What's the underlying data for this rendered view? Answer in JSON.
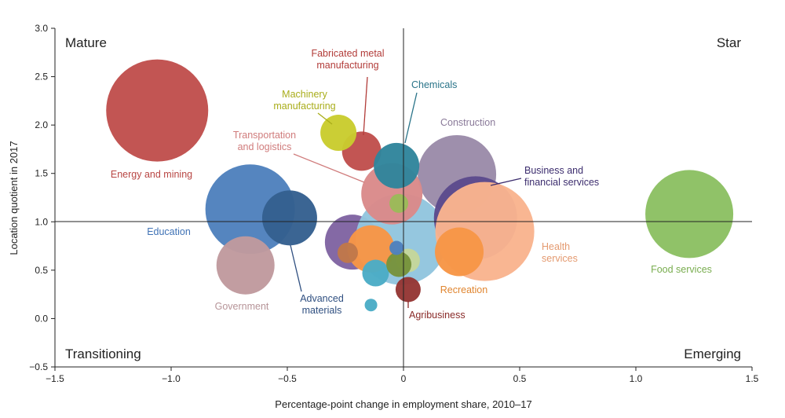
{
  "chart_data": {
    "type": "scatter",
    "subtype": "bubble",
    "xlabel": "Percentage-point change in employment share, 2010–17",
    "ylabel": "Location quotient in 2017",
    "xlim": [
      -1.5,
      1.5
    ],
    "ylim": [
      -0.5,
      3.0
    ],
    "x_ticks": [
      -1.5,
      -1.0,
      -0.5,
      0,
      0.5,
      1.0,
      1.5
    ],
    "x_tick_labels": [
      "−1.5",
      "−1.0",
      "−0.5",
      "0",
      "0.5",
      "1.0",
      "1.5"
    ],
    "y_ticks": [
      -0.5,
      0.0,
      0.5,
      1.0,
      1.5,
      2.0,
      2.5,
      3.0
    ],
    "y_tick_labels": [
      "−0.5",
      "0.0",
      "0.5",
      "1.0",
      "1.5",
      "2.0",
      "2.5",
      "3.0"
    ],
    "reference_lines": {
      "x": 0,
      "y": 1.0
    },
    "quadrants": {
      "top_left": "Mature",
      "top_right": "Star",
      "bottom_left": "Transitioning",
      "bottom_right": "Emerging"
    },
    "bubbles": [
      {
        "id": "energy-and-mining",
        "label": "Energy and mining",
        "x": -1.06,
        "y": 2.15,
        "size": 65,
        "color": "#c0504d"
      },
      {
        "id": "education",
        "label": "Education",
        "x": -0.66,
        "y": 1.13,
        "size": 57,
        "color": "#4f81bd"
      },
      {
        "id": "government",
        "label": "Government",
        "x": -0.68,
        "y": 0.55,
        "size": 37,
        "color": "#c09a9e"
      },
      {
        "id": "advanced-materials",
        "label": "Advanced materials",
        "x": -0.49,
        "y": 1.04,
        "size": 35,
        "color": "#35608f"
      },
      {
        "id": "unlabeled-purple",
        "label": "",
        "x": -0.22,
        "y": 0.79,
        "size": 35,
        "color": "#8064a2"
      },
      {
        "id": "unlabeled-light-blue",
        "label": "",
        "x": -0.01,
        "y": 0.82,
        "size": 58,
        "color": "#92c5de"
      },
      {
        "id": "construction",
        "label": "Construction",
        "x": 0.23,
        "y": 1.49,
        "size": 50,
        "color": "#9b8ba9"
      },
      {
        "id": "business-and-financial-services",
        "label": "Business and financial services",
        "x": 0.31,
        "y": 1.04,
        "size": 53,
        "color": "#5c4a8c"
      },
      {
        "id": "health-services",
        "label": "Health services",
        "x": 0.35,
        "y": 0.9,
        "size": 63,
        "color": "#f9b48e"
      },
      {
        "id": "recreation",
        "label": "Recreation",
        "x": 0.24,
        "y": 0.69,
        "size": 31,
        "color": "#f79646"
      },
      {
        "id": "food-services",
        "label": "Food services",
        "x": 1.23,
        "y": 1.08,
        "size": 56,
        "color": "#8cc063"
      },
      {
        "id": "transportation-and-logistics",
        "label": "Transportation and logistics",
        "x": -0.05,
        "y": 1.29,
        "size": 39,
        "color": "#da8a8a"
      },
      {
        "id": "unlabeled-orange",
        "label": "",
        "x": -0.14,
        "y": 0.72,
        "size": 30,
        "color": "#f79646"
      },
      {
        "id": "fabricated-metal-manufacturing",
        "label": "Fabricated metal manufacturing",
        "x": -0.18,
        "y": 1.73,
        "size": 25,
        "color": "#c0504d"
      },
      {
        "id": "machinery-manufacturing",
        "label": "Machinery manufacturing",
        "x": -0.28,
        "y": 1.92,
        "size": 23,
        "color": "#c9cc2e"
      },
      {
        "id": "chemicals",
        "label": "Chemicals",
        "x": -0.03,
        "y": 1.58,
        "size": 29,
        "color": "#31859c"
      },
      {
        "id": "unlabeled-cyan",
        "label": "",
        "x": -0.12,
        "y": 0.47,
        "size": 17,
        "color": "#4bacc6"
      },
      {
        "id": "unlabeled-light-green",
        "label": "",
        "x": 0.02,
        "y": 0.6,
        "size": 15,
        "color": "#c4d79b"
      },
      {
        "id": "unlabeled-olive",
        "label": "",
        "x": -0.02,
        "y": 0.56,
        "size": 16,
        "color": "#77933c"
      },
      {
        "id": "unlabeled-brown",
        "label": "",
        "x": -0.24,
        "y": 0.68,
        "size": 13,
        "color": "#c0784a"
      },
      {
        "id": "unlabeled-small-blue",
        "label": "",
        "x": -0.03,
        "y": 0.73,
        "size": 9,
        "color": "#4f81bd"
      },
      {
        "id": "unlabeled-small-green",
        "label": "",
        "x": -0.02,
        "y": 1.19,
        "size": 12,
        "color": "#9bbb59"
      },
      {
        "id": "unlabeled-teal-small",
        "label": "",
        "x": -0.14,
        "y": 0.14,
        "size": 8,
        "color": "#4bacc6"
      },
      {
        "id": "agribusiness",
        "label": "Agribusiness",
        "x": 0.02,
        "y": 0.3,
        "size": 16,
        "color": "#953735"
      }
    ]
  }
}
